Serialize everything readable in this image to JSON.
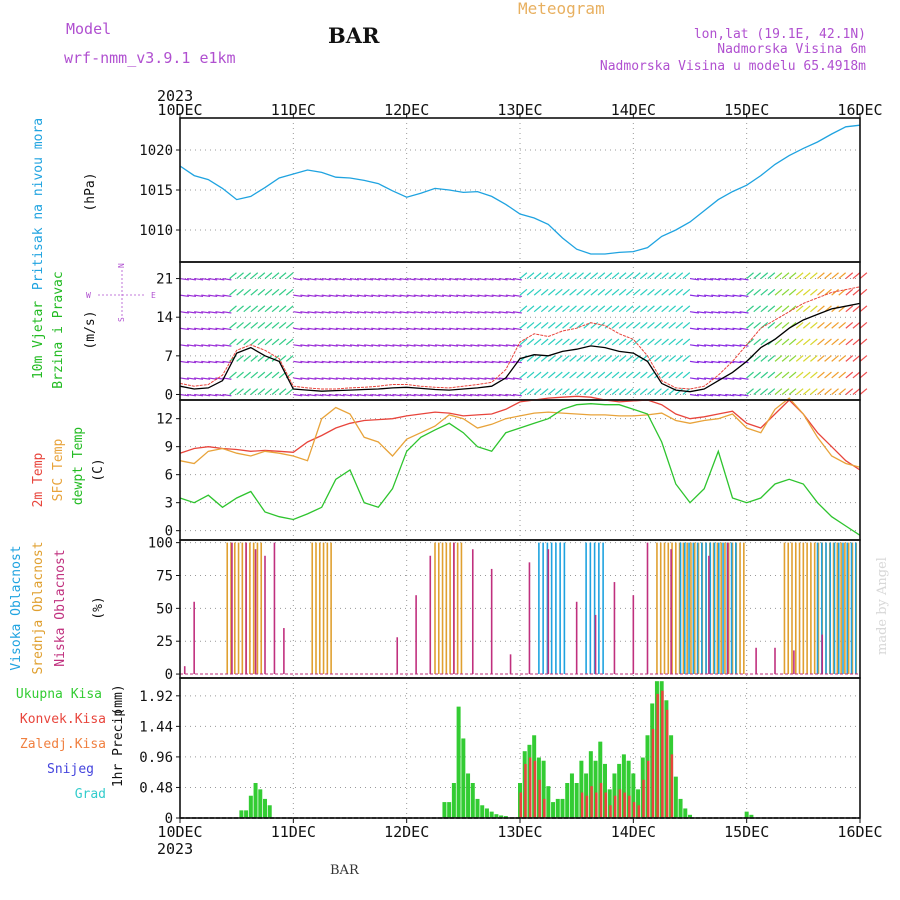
{
  "header": {
    "model_label": "Model",
    "model_name": "wrf-nmm_v3.9.1 e1km",
    "station": "BAR",
    "title": "Meteogram",
    "lonlat": "lon,lat (19.1E, 42.1N)",
    "elev": "Nadmorska Visina 6m",
    "elev_model": "Nadmorska Visina u modelu 65.4918m"
  },
  "footer_station": "BAR",
  "credit": "made by Angel",
  "colors": {
    "pressure": "#1fa3e0",
    "temp2m": "#e8453c",
    "sfc": "#e8a33a",
    "dewpt": "#2ec42e",
    "high_cloud": "#1fa3e0",
    "mid_cloud": "#e0a030",
    "low_cloud": "#c0307e",
    "total_precip": "#33cc33",
    "conv_precip": "#e8453c",
    "frz_precip": "#f08040",
    "snow": "#4444dd",
    "hail": "#33cccc",
    "purple_text": "#b050d0"
  },
  "chart_data": {
    "type": "meteogram",
    "year": "2023",
    "x_labels": [
      "10DEC",
      "11DEC",
      "12DEC",
      "13DEC",
      "14DEC",
      "15DEC",
      "16DEC"
    ],
    "x_unit": "hours since 10DEC 00UTC",
    "x_range": [
      0,
      144
    ],
    "panels": [
      {
        "id": "pressure",
        "ylabel": "Pritisak na nivou mora",
        "unit": "(hPa)",
        "ylim": [
          1006,
          1024
        ],
        "yticks": [
          1010,
          1015,
          1020
        ],
        "series": [
          {
            "name": "Pritisak na nivou mora",
            "color": "#1fa3e0",
            "x": [
              0,
              3,
              6,
              9,
              12,
              15,
              18,
              21,
              24,
              27,
              30,
              33,
              36,
              39,
              42,
              45,
              48,
              51,
              54,
              57,
              60,
              63,
              66,
              69,
              72,
              75,
              78,
              81,
              84,
              87,
              90,
              93,
              96,
              99,
              102,
              105,
              108,
              111,
              114,
              117,
              120,
              123,
              126,
              129,
              132,
              135,
              138,
              141,
              144
            ],
            "y": [
              1018.0,
              1016.8,
              1016.3,
              1015.2,
              1013.8,
              1014.2,
              1015.3,
              1016.5,
              1017.0,
              1017.5,
              1017.2,
              1016.6,
              1016.5,
              1016.2,
              1015.8,
              1014.9,
              1014.1,
              1014.6,
              1015.2,
              1015.0,
              1014.7,
              1014.8,
              1014.2,
              1013.2,
              1012.0,
              1011.5,
              1010.7,
              1009.0,
              1007.6,
              1007.0,
              1007.0,
              1007.2,
              1007.3,
              1007.8,
              1009.2,
              1010.0,
              1011.0,
              1012.4,
              1013.8,
              1014.8,
              1015.6,
              1016.8,
              1018.2,
              1019.3,
              1020.2,
              1021.0,
              1022.0,
              1022.9,
              1023.1
            ]
          }
        ]
      },
      {
        "id": "wind",
        "ylabel": "10m Vjetar",
        "ylabel2": "Brzina i Pravac",
        "unit": "(m/s)",
        "compass": {
          "n": "N",
          "s": "S",
          "e": "E",
          "w": "W"
        },
        "ylim": [
          -1,
          24
        ],
        "yticks": [
          0,
          7,
          14,
          21
        ],
        "series": [
          {
            "name": "wind speed",
            "color": "#000000",
            "x": [
              0,
              3,
              6,
              9,
              12,
              15,
              18,
              21,
              24,
              27,
              30,
              33,
              36,
              39,
              42,
              45,
              48,
              51,
              54,
              57,
              60,
              63,
              66,
              69,
              72,
              75,
              78,
              81,
              84,
              87,
              90,
              93,
              96,
              99,
              102,
              105,
              108,
              111,
              114,
              117,
              120,
              123,
              126,
              129,
              132,
              135,
              138,
              141,
              144
            ],
            "y": [
              1.5,
              1.0,
              1.2,
              2.5,
              7.5,
              8.5,
              7.0,
              6.0,
              1.0,
              0.8,
              0.6,
              0.7,
              0.8,
              0.9,
              1.0,
              1.2,
              1.3,
              1.1,
              0.9,
              0.8,
              1.0,
              1.2,
              1.5,
              3.0,
              6.5,
              7.2,
              7.0,
              7.8,
              8.2,
              8.8,
              8.5,
              7.8,
              7.5,
              6.0,
              2.0,
              0.8,
              0.5,
              1.0,
              2.5,
              4.0,
              6.0,
              8.5,
              10.0,
              12.0,
              13.5,
              14.5,
              15.5,
              16.0,
              16.5
            ]
          },
          {
            "name": "gusts",
            "color": "#e8453c",
            "x": [
              0,
              3,
              6,
              9,
              12,
              15,
              18,
              21,
              24,
              27,
              30,
              33,
              36,
              39,
              42,
              45,
              48,
              51,
              54,
              57,
              60,
              63,
              66,
              69,
              72,
              75,
              78,
              81,
              84,
              87,
              90,
              93,
              96,
              99,
              102,
              105,
              108,
              111,
              114,
              117,
              120,
              123,
              126,
              129,
              132,
              135,
              138,
              141,
              144
            ],
            "y": [
              2.0,
              1.5,
              1.8,
              3.5,
              8.0,
              9.0,
              8.0,
              6.5,
              1.5,
              1.2,
              1.0,
              1.0,
              1.2,
              1.3,
              1.5,
              1.8,
              1.8,
              1.5,
              1.3,
              1.2,
              1.5,
              1.8,
              2.2,
              4.5,
              9.5,
              11.0,
              10.5,
              11.5,
              12.0,
              13.0,
              12.5,
              11.0,
              10.0,
              7.0,
              2.5,
              1.2,
              1.0,
              1.5,
              3.5,
              6.0,
              9.0,
              12.0,
              13.5,
              15.0,
              16.5,
              17.5,
              18.5,
              19.0,
              19.5
            ]
          }
        ]
      },
      {
        "id": "temperature",
        "ylabel": "2m Temp",
        "ylabel2": "SFC Temp",
        "ylabel3": "dewpt Temp",
        "unit": "(C)",
        "ylim": [
          -1,
          14
        ],
        "yticks": [
          0,
          3,
          6,
          9,
          12
        ],
        "series": [
          {
            "name": "2m Temp",
            "color": "#e8453c",
            "x": [
              0,
              3,
              6,
              9,
              12,
              15,
              18,
              21,
              24,
              27,
              30,
              33,
              36,
              39,
              42,
              45,
              48,
              51,
              54,
              57,
              60,
              63,
              66,
              69,
              72,
              75,
              78,
              81,
              84,
              87,
              90,
              93,
              96,
              99,
              102,
              105,
              108,
              111,
              114,
              117,
              120,
              123,
              126,
              129,
              132,
              135,
              138,
              141,
              144
            ],
            "y": [
              8.3,
              8.8,
              9.0,
              8.8,
              8.7,
              8.5,
              8.6,
              8.5,
              8.4,
              9.5,
              10.2,
              11.0,
              11.5,
              11.8,
              11.9,
              12.0,
              12.3,
              12.5,
              12.7,
              12.6,
              12.3,
              12.4,
              12.5,
              13.0,
              13.8,
              14.0,
              14.2,
              14.3,
              14.4,
              14.3,
              14.0,
              13.8,
              13.9,
              14.0,
              13.5,
              12.5,
              12.0,
              12.2,
              12.5,
              12.8,
              11.5,
              11.0,
              12.5,
              14.0,
              12.5,
              10.5,
              9.0,
              7.5,
              6.5
            ]
          },
          {
            "name": "SFC Temp",
            "color": "#e8a33a",
            "x": [
              0,
              3,
              6,
              9,
              12,
              15,
              18,
              21,
              24,
              27,
              30,
              33,
              36,
              39,
              42,
              45,
              48,
              51,
              54,
              57,
              60,
              63,
              66,
              69,
              72,
              75,
              78,
              81,
              84,
              87,
              90,
              93,
              96,
              99,
              102,
              105,
              108,
              111,
              114,
              117,
              120,
              123,
              126,
              129,
              132,
              135,
              138,
              141,
              144
            ],
            "y": [
              7.5,
              7.2,
              8.5,
              8.8,
              8.3,
              8.0,
              8.5,
              8.3,
              8.0,
              7.5,
              12.0,
              13.2,
              12.5,
              10.0,
              9.5,
              8.0,
              9.8,
              10.5,
              11.2,
              12.4,
              12.0,
              11.0,
              11.4,
              12.0,
              12.3,
              12.6,
              12.7,
              12.6,
              12.5,
              12.4,
              12.4,
              12.3,
              12.3,
              12.4,
              12.6,
              11.8,
              11.5,
              11.8,
              12.0,
              12.5,
              11.0,
              10.5,
              13.0,
              14.2,
              12.5,
              10.0,
              8.0,
              7.2,
              6.8
            ]
          },
          {
            "name": "dewpt Temp",
            "color": "#2ec42e",
            "x": [
              0,
              3,
              6,
              9,
              12,
              15,
              18,
              21,
              24,
              27,
              30,
              33,
              36,
              39,
              42,
              45,
              48,
              51,
              54,
              57,
              60,
              63,
              66,
              69,
              72,
              75,
              78,
              81,
              84,
              87,
              90,
              93,
              96,
              99,
              102,
              105,
              108,
              111,
              114,
              117,
              120,
              123,
              126,
              129,
              132,
              135,
              138,
              141,
              144
            ],
            "y": [
              3.5,
              3.0,
              3.8,
              2.5,
              3.5,
              4.2,
              2.0,
              1.5,
              1.2,
              1.8,
              2.5,
              5.5,
              6.5,
              3.0,
              2.5,
              4.5,
              8.5,
              10.0,
              10.8,
              11.5,
              10.5,
              9.0,
              8.5,
              10.5,
              11.0,
              11.5,
              12.0,
              13.0,
              13.5,
              13.6,
              13.5,
              13.5,
              13.0,
              12.5,
              9.5,
              5.0,
              3.0,
              4.5,
              8.5,
              3.5,
              3.0,
              3.5,
              5.0,
              5.5,
              5.0,
              3.0,
              1.5,
              0.5,
              -0.5
            ]
          }
        ]
      },
      {
        "id": "cloud",
        "ylabel": "Visoka Oblacnost",
        "ylabel2": "Srednja Oblacnost",
        "ylabel3": "Niska Oblacnost",
        "unit": "(%)",
        "ylim": [
          -3,
          102
        ],
        "yticks": [
          0,
          25,
          50,
          75,
          100
        ]
      },
      {
        "id": "precip",
        "ylabel": "1hr Precip",
        "unit": "(mm)",
        "ylim": [
          0,
          2.2
        ],
        "yticks": [
          0,
          0.48,
          0.96,
          1.44,
          1.92
        ],
        "ytick_labels": [
          "0",
          "0.48",
          "0.96",
          "1.44",
          "1.92"
        ],
        "legend": [
          "Ukupna Kisa",
          "Konvek.Kisa",
          "Zaledj.Kisa",
          "Snijeg",
          "Grad"
        ],
        "series": [
          {
            "name": "Ukupna Kisa",
            "color": "#33cc33",
            "x": [
              13,
              14,
              15,
              16,
              17,
              18,
              19,
              56,
              57,
              58,
              59,
              60,
              61,
              62,
              63,
              64,
              65,
              66,
              67,
              68,
              69,
              72,
              73,
              74,
              75,
              76,
              77,
              78,
              79,
              80,
              81,
              82,
              83,
              84,
              85,
              86,
              87,
              88,
              89,
              90,
              91,
              92,
              93,
              94,
              95,
              96,
              97,
              98,
              99,
              100,
              101,
              102,
              103,
              104,
              105,
              106,
              107,
              108,
              120,
              121
            ],
            "y": [
              0.12,
              0.12,
              0.35,
              0.55,
              0.45,
              0.3,
              0.2,
              0.25,
              0.25,
              0.55,
              1.75,
              1.25,
              0.7,
              0.55,
              0.3,
              0.2,
              0.15,
              0.1,
              0.06,
              0.04,
              0.03,
              0.55,
              1.05,
              1.15,
              1.3,
              0.95,
              0.9,
              0.5,
              0.25,
              0.3,
              0.3,
              0.55,
              0.7,
              0.55,
              0.9,
              0.7,
              1.05,
              0.9,
              1.2,
              0.85,
              0.45,
              0.7,
              0.85,
              1.0,
              0.9,
              0.7,
              0.45,
              0.95,
              1.3,
              1.8,
              2.15,
              2.15,
              1.85,
              1.3,
              0.65,
              0.3,
              0.15,
              0.05,
              0.1,
              0.05
            ]
          },
          {
            "name": "Konvek.Kisa",
            "color": "#e8453c",
            "x": [
              72,
              73,
              74,
              75,
              76,
              77,
              85,
              86,
              87,
              88,
              89,
              90,
              91,
              92,
              93,
              94,
              95,
              96,
              97,
              98,
              99,
              100,
              101,
              102,
              103,
              104
            ],
            "y": [
              0.4,
              0.85,
              0.95,
              0.9,
              0.6,
              0.3,
              0.4,
              0.35,
              0.5,
              0.4,
              0.55,
              0.4,
              0.2,
              0.35,
              0.45,
              0.4,
              0.35,
              0.25,
              0.2,
              0.6,
              0.9,
              1.4,
              1.95,
              2.0,
              1.7,
              1.0
            ]
          }
        ]
      }
    ]
  }
}
